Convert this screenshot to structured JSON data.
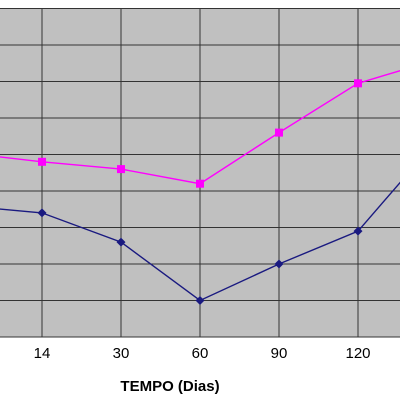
{
  "chart_data": {
    "type": "line",
    "xlabel": "TEMPO (Dias)",
    "ylabel": "",
    "categories": [
      "",
      "14",
      "30",
      "60",
      "90",
      "120",
      ""
    ],
    "ylim": [
      0,
      9
    ],
    "grid": true,
    "series": [
      {
        "color": "#ff00ff",
        "marker": "square",
        "values": [
          5.05,
          4.8,
          4.6,
          4.2,
          5.6,
          6.95,
          7.6
        ]
      },
      {
        "color": "#1a1a80",
        "marker": "diamond",
        "values": [
          3.6,
          3.4,
          2.6,
          1.0,
          2.0,
          2.9,
          5.4
        ]
      }
    ],
    "colors": {
      "plot_background": "#c0c0c0",
      "gridline": "#333333"
    }
  }
}
